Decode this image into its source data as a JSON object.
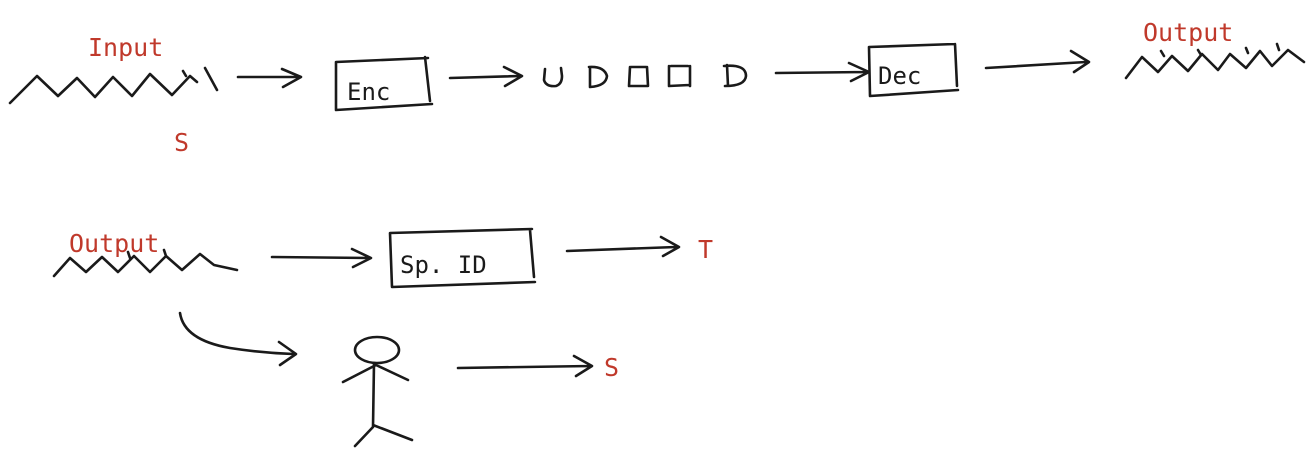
{
  "row1": {
    "input_label": "Input",
    "input_symbol": "S",
    "encoder_label": "Enc",
    "decoder_label": "Dec",
    "output_label": "Output"
  },
  "row2": {
    "output_label": "Output",
    "speaker_id_label": "Sp. ID",
    "speaker_id_result": "T",
    "human_result": "S"
  },
  "colors": {
    "ink": "#1a1a1a",
    "accent": "#c0392b"
  }
}
